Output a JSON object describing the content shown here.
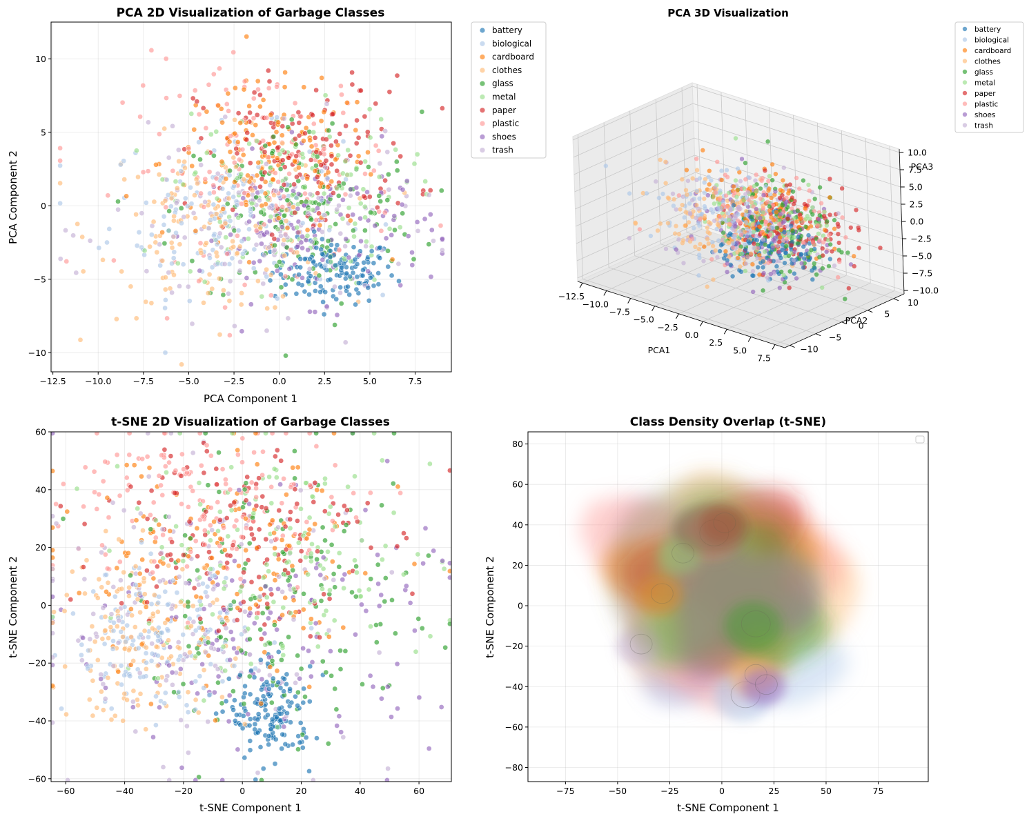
{
  "colors": {
    "battery": "#1f77b4",
    "biological": "#aec7e8",
    "cardboard": "#ff7f0e",
    "clothes": "#ffbb78",
    "glass": "#2ca02c",
    "metal": "#98df8a",
    "paper": "#d62728",
    "plastic": "#ff9896",
    "shoes": "#9467bd",
    "trash": "#c5b0d5"
  },
  "legend_entries": [
    "battery",
    "biological",
    "cardboard",
    "clothes",
    "glass",
    "metal",
    "paper",
    "plastic",
    "shoes",
    "trash"
  ],
  "chart_data": [
    {
      "id": "pca2d",
      "type": "scatter",
      "title": "PCA 2D Visualization of Garbage Classes",
      "xlabel": "PCA Component 1",
      "ylabel": "PCA Component 2",
      "xlim": [
        -12.6,
        9.5
      ],
      "ylim": [
        -11.3,
        12.5
      ],
      "xticks": [
        -12.5,
        -10.0,
        -7.5,
        -5.0,
        -2.5,
        0.0,
        2.5,
        5.0,
        7.5
      ],
      "yticks": [
        -10,
        -5,
        0,
        5,
        10
      ],
      "grid": true,
      "legend": "outside-right",
      "series": [
        {
          "name": "battery",
          "center": [
            3.0,
            -4.5
          ],
          "spread": [
            1.7,
            1.1
          ]
        },
        {
          "name": "biological",
          "center": [
            -3.0,
            -0.5
          ],
          "spread": [
            3.2,
            2.8
          ]
        },
        {
          "name": "cardboard",
          "center": [
            -0.5,
            3.0
          ],
          "spread": [
            3.0,
            2.6
          ]
        },
        {
          "name": "clothes",
          "center": [
            -3.5,
            -1.5
          ],
          "spread": [
            3.3,
            3.0
          ]
        },
        {
          "name": "glass",
          "center": [
            1.0,
            -0.5
          ],
          "spread": [
            3.4,
            3.4
          ]
        },
        {
          "name": "metal",
          "center": [
            0.5,
            0.5
          ],
          "spread": [
            3.2,
            3.0
          ]
        },
        {
          "name": "paper",
          "center": [
            1.5,
            3.5
          ],
          "spread": [
            3.0,
            2.6
          ]
        },
        {
          "name": "plastic",
          "center": [
            -1.0,
            2.5
          ],
          "spread": [
            3.8,
            3.6
          ]
        },
        {
          "name": "shoes",
          "center": [
            2.0,
            -1.5
          ],
          "spread": [
            3.2,
            2.4
          ]
        },
        {
          "name": "trash",
          "center": [
            -1.0,
            -1.8
          ],
          "spread": [
            4.2,
            3.0
          ]
        }
      ]
    },
    {
      "id": "pca3d",
      "type": "scatter",
      "title": "PCA 3D Visualization",
      "xlabel": "PCA1",
      "ylabel": "PCA2",
      "zlabel": "PCA3",
      "xlim": [
        -13.0,
        8.5
      ],
      "ylim": [
        -11.0,
        12.0
      ],
      "zlim": [
        -10.5,
        10.5
      ],
      "xticks": [
        -12.5,
        -10.0,
        -7.5,
        -5.0,
        -2.5,
        0.0,
        2.5,
        5.0,
        7.5
      ],
      "yticks": [
        -10,
        -5,
        0,
        5,
        10
      ],
      "zticks": [
        -10.0,
        -7.5,
        -5.0,
        -2.5,
        0.0,
        2.5,
        5.0,
        7.5,
        10.0
      ],
      "grid": true,
      "legend": "outside-right",
      "series": [
        {
          "name": "battery",
          "center": [
            3.0,
            -4.5,
            -1.0
          ],
          "spread": [
            2.5,
            2.0,
            2.0
          ]
        },
        {
          "name": "biological",
          "center": [
            -3.0,
            -0.5,
            0.0
          ],
          "spread": [
            3.0,
            3.0,
            3.0
          ]
        },
        {
          "name": "cardboard",
          "center": [
            -0.5,
            3.0,
            0.0
          ],
          "spread": [
            3.0,
            3.0,
            3.0
          ]
        },
        {
          "name": "clothes",
          "center": [
            -3.5,
            -1.5,
            -1.0
          ],
          "spread": [
            3.0,
            3.0,
            3.0
          ]
        },
        {
          "name": "glass",
          "center": [
            2.0,
            0.5,
            0.0
          ],
          "spread": [
            3.2,
            3.2,
            3.0
          ]
        },
        {
          "name": "metal",
          "center": [
            0.5,
            0.5,
            0.0
          ],
          "spread": [
            3.0,
            3.0,
            3.0
          ]
        },
        {
          "name": "paper",
          "center": [
            3.0,
            2.5,
            0.0
          ],
          "spread": [
            3.0,
            3.0,
            3.0
          ]
        },
        {
          "name": "plastic",
          "center": [
            -1.0,
            2.5,
            0.0
          ],
          "spread": [
            3.5,
            3.5,
            3.0
          ]
        },
        {
          "name": "shoes",
          "center": [
            2.0,
            -1.5,
            0.0
          ],
          "spread": [
            3.0,
            3.0,
            3.0
          ]
        },
        {
          "name": "trash",
          "center": [
            -1.0,
            -1.8,
            0.0
          ],
          "spread": [
            4.0,
            3.0,
            3.0
          ]
        }
      ]
    },
    {
      "id": "tsne2d",
      "type": "scatter",
      "title": "t-SNE 2D Visualization of Garbage Classes",
      "xlabel": "t-SNE Component 1",
      "ylabel": "t-SNE Component 2",
      "xlim": [
        -65,
        71
      ],
      "ylim": [
        -61,
        60
      ],
      "xticks": [
        -60,
        -40,
        -20,
        0,
        20,
        40,
        60
      ],
      "yticks": [
        -60,
        -40,
        -20,
        0,
        20,
        40,
        60
      ],
      "grid": true,
      "series": [
        {
          "name": "battery",
          "center": [
            10,
            -38
          ],
          "spread": [
            7,
            8
          ]
        },
        {
          "name": "biological",
          "center": [
            -30,
            -12
          ],
          "spread": [
            15,
            12
          ]
        },
        {
          "name": "cardboard",
          "center": [
            -5,
            10
          ],
          "spread": [
            30,
            22
          ]
        },
        {
          "name": "clothes",
          "center": [
            -35,
            -10
          ],
          "spread": [
            15,
            15
          ]
        },
        {
          "name": "glass",
          "center": [
            15,
            0
          ],
          "spread": [
            25,
            25
          ]
        },
        {
          "name": "metal",
          "center": [
            10,
            15
          ],
          "spread": [
            28,
            20
          ]
        },
        {
          "name": "paper",
          "center": [
            -2,
            25
          ],
          "spread": [
            22,
            18
          ]
        },
        {
          "name": "plastic",
          "center": [
            -10,
            35
          ],
          "spread": [
            25,
            15
          ]
        },
        {
          "name": "shoes",
          "center": [
            5,
            -10
          ],
          "spread": [
            30,
            22
          ]
        },
        {
          "name": "trash",
          "center": [
            -20,
            0
          ],
          "spread": [
            30,
            25
          ]
        }
      ]
    },
    {
      "id": "density",
      "type": "area",
      "title": "Class Density Overlap (t-SNE)",
      "xlabel": "t-SNE Component 1",
      "ylabel": "t-SNE Component 2",
      "xlim": [
        -93,
        99
      ],
      "ylim": [
        -87,
        86
      ],
      "xticks": [
        -75,
        -50,
        -25,
        0,
        25,
        50,
        75
      ],
      "yticks": [
        -80,
        -60,
        -40,
        -20,
        0,
        20,
        40,
        60,
        80
      ],
      "grid": true,
      "legend": "top-right (empty)",
      "series": [
        {
          "name": "biological",
          "center": [
            12,
            -20
          ],
          "spread": [
            48,
            38
          ],
          "core": [
            10,
            -45
          ]
        },
        {
          "name": "clothes",
          "center": [
            5,
            10
          ],
          "spread": [
            60,
            50
          ],
          "core": [
            15,
            -35
          ]
        },
        {
          "name": "trash",
          "center": [
            -10,
            5
          ],
          "spread": [
            55,
            48
          ],
          "core": [
            -40,
            -20
          ]
        },
        {
          "name": "plastic",
          "center": [
            -5,
            10
          ],
          "spread": [
            63,
            55
          ],
          "core": [
            -5,
            35
          ]
        },
        {
          "name": "cardboard",
          "center": [
            0,
            8
          ],
          "spread": [
            50,
            45
          ],
          "core": [
            -30,
            5
          ]
        },
        {
          "name": "paper",
          "center": [
            5,
            20
          ],
          "spread": [
            45,
            40
          ],
          "core": [
            0,
            40
          ]
        },
        {
          "name": "glass",
          "center": [
            10,
            0
          ],
          "spread": [
            42,
            38
          ],
          "core": [
            15,
            -10
          ]
        },
        {
          "name": "metal",
          "center": [
            0,
            10
          ],
          "spread": [
            48,
            42
          ],
          "core": [
            -20,
            25
          ]
        },
        {
          "name": "shoes",
          "center": [
            5,
            5
          ],
          "spread": [
            40,
            38
          ],
          "core": [
            20,
            -40
          ]
        }
      ]
    }
  ]
}
